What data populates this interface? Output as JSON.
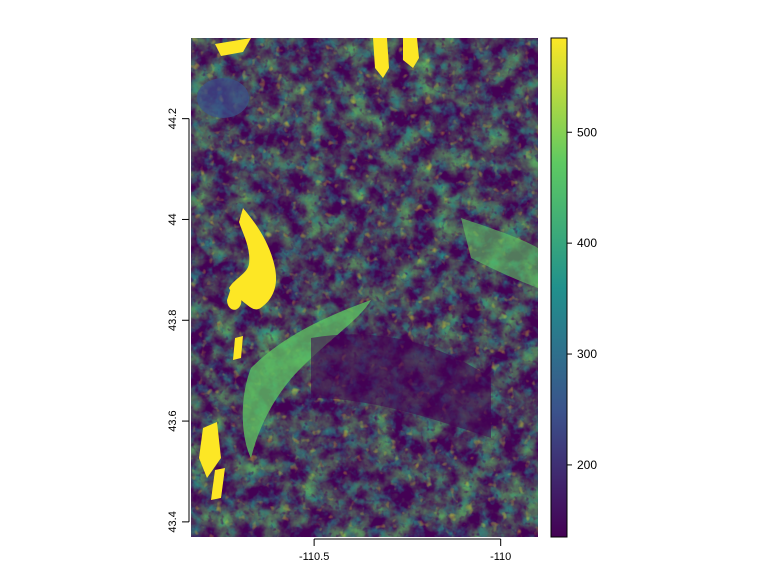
{
  "chart_data": {
    "type": "heatmap",
    "title": "",
    "xlabel": "",
    "ylabel": "",
    "xlim": [
      -110.83,
      -109.9
    ],
    "ylim": [
      43.37,
      44.36
    ],
    "x_ticks": [
      -110.5,
      -110
    ],
    "x_tick_labels": [
      "-110.5",
      "-110"
    ],
    "y_ticks": [
      43.4,
      43.6,
      43.8,
      44,
      44.2
    ],
    "y_tick_labels": [
      "43.4",
      "43.6",
      "43.8",
      "44",
      "44.2"
    ],
    "legend": {
      "placement": "right",
      "range": [
        135,
        585
      ],
      "ticks": [
        200,
        300,
        400,
        500
      ],
      "tick_labels": [
        "200",
        "300",
        "400",
        "500"
      ]
    },
    "colormap": [
      "#440154",
      "#3b528b",
      "#21918c",
      "#5ec962",
      "#fde725"
    ],
    "grid": false
  }
}
